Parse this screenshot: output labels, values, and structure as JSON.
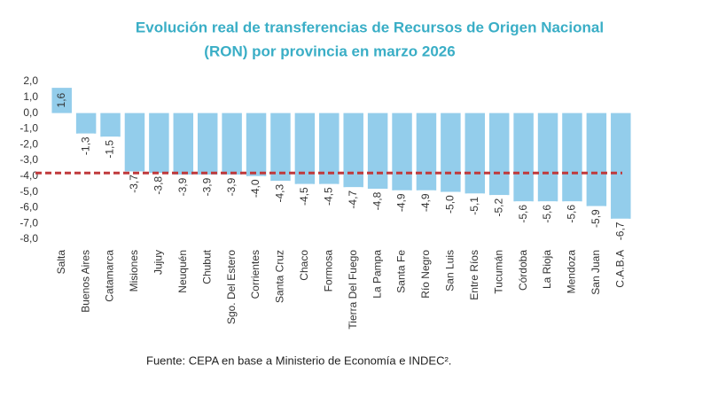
{
  "chart_data": {
    "type": "bar",
    "title": "Evolución real de transferencias de Recursos de Origen Nacional",
    "subtitle": "(RON) por provincia en marzo 2026",
    "source": "Fuente: CEPA en base a Ministerio de Economía e INDEC².",
    "categories": [
      "Salta",
      "Buenos Aires",
      "Catamarca",
      "Misiones",
      "Jujuy",
      "Neuquén",
      "Chubut",
      "Sgo. Del Estero",
      "Corrientes",
      "Santa Cruz",
      "Chaco",
      "Formosa",
      "Tierra Del Fuego",
      "La Pampa",
      "Santa Fe",
      "Río Negro",
      "San Luis",
      "Entre Ríos",
      "Tucumán",
      "Córdoba",
      "La Rioja",
      "Mendoza",
      "San Juan",
      "C.A.B.A"
    ],
    "values": [
      1.6,
      -1.3,
      -1.5,
      -3.7,
      -3.8,
      -3.9,
      -3.9,
      -3.9,
      -4.0,
      -4.3,
      -4.5,
      -4.5,
      -4.7,
      -4.8,
      -4.9,
      -4.9,
      -5.0,
      -5.1,
      -5.2,
      -5.6,
      -5.6,
      -5.6,
      -5.9,
      -6.7
    ],
    "value_labels": [
      "1,6",
      "-1,3",
      "-1,5",
      "-3,7",
      "-3,8",
      "-3,9",
      "-3,9",
      "-3,9",
      "-4,0",
      "-4,3",
      "-4,5",
      "-4,5",
      "-4,7",
      "-4,8",
      "-4,9",
      "-4,9",
      "-5,0",
      "-5,1",
      "-5,2",
      "-5,6",
      "-5,6",
      "-5,6",
      "-5,9",
      "-6,7"
    ],
    "color": "#93cdeb",
    "reference_line": -3.8,
    "reference_color": "#c0393b",
    "ylim": [
      -8,
      2
    ],
    "yticks": [
      {
        "value": 2,
        "label": "2,0"
      },
      {
        "value": 1,
        "label": "1,0"
      },
      {
        "value": 0,
        "label": "0,0"
      },
      {
        "value": -1,
        "label": "-1,0"
      },
      {
        "value": -2,
        "label": "-2,0"
      },
      {
        "value": -3,
        "label": "-3,0"
      },
      {
        "value": -4,
        "label": "-4,0"
      },
      {
        "value": -5,
        "label": "-5,0"
      },
      {
        "value": -6,
        "label": "-6,0"
      },
      {
        "value": -7,
        "label": "-7,0"
      },
      {
        "value": -8,
        "label": "-8,0"
      }
    ],
    "grid": false
  }
}
